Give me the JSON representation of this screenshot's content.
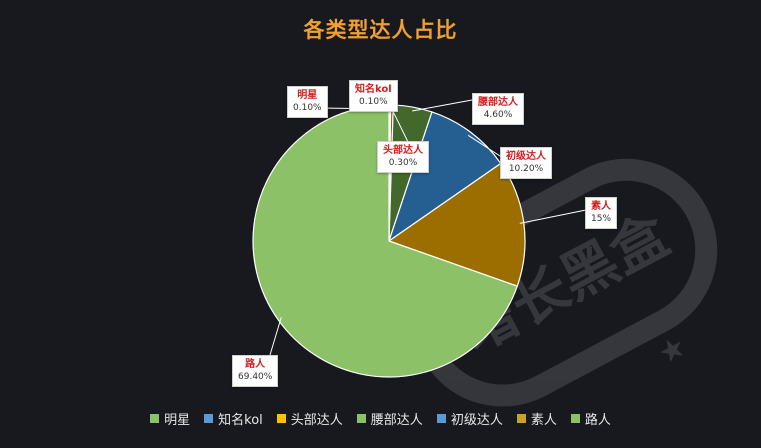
{
  "chart_data": {
    "type": "pie",
    "title": "各类型达人占比",
    "slices": [
      {
        "name": "明星",
        "value": 0.1,
        "label": "0.10%",
        "color": "#43682b"
      },
      {
        "name": "知名kol",
        "value": 0.1,
        "label": "0.10%",
        "color": "#255e91"
      },
      {
        "name": "头部达人",
        "value": 0.3,
        "label": "0.30%",
        "color": "#9e480e"
      },
      {
        "name": "腰部达人",
        "value": 4.6,
        "label": "4.60%",
        "color": "#43682b"
      },
      {
        "name": "初级达人",
        "value": 10.2,
        "label": "10.20%",
        "color": "#255e91"
      },
      {
        "name": "素人",
        "value": 15.0,
        "label": "15%",
        "color": "#9c6e00"
      },
      {
        "name": "路人",
        "value": 69.4,
        "label": "69.40%",
        "color": "#8cc168"
      }
    ],
    "legend": [
      {
        "name": "明星",
        "color": "#8cc168"
      },
      {
        "name": "知名kol",
        "color": "#5b9bd5"
      },
      {
        "name": "头部达人",
        "color": "#ffc000"
      },
      {
        "name": "腰部达人",
        "color": "#8cc168"
      },
      {
        "name": "初级达人",
        "color": "#5b9bd5"
      },
      {
        "name": "素人",
        "color": "#c9a227"
      },
      {
        "name": "路人",
        "color": "#8cc168"
      }
    ],
    "legend_position": "bottom"
  },
  "watermark": {
    "text": "增长黑盒"
  }
}
